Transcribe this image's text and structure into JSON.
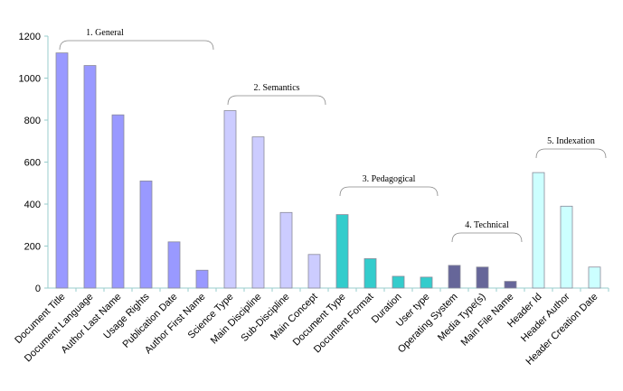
{
  "chart_data": {
    "type": "bar",
    "title": "",
    "xlabel": "",
    "ylabel": "",
    "ylim": [
      0,
      1200
    ],
    "yticks": [
      "0",
      "200",
      "400",
      "600",
      "800",
      "1000",
      "1200"
    ],
    "grid": false,
    "categories": [
      "Document Title",
      "Document Language",
      "Author Last Name",
      "Usage Rights",
      "Publication Date",
      "Author First Name",
      "Science  Type",
      "Main Discipline",
      "Sub-Discipline",
      "Main Concept",
      "Document Type",
      "Document Format",
      "Duration",
      "User type",
      "Operating System",
      "Media Type(s)",
      "Main File Name",
      "Header Id",
      "Header Author",
      "Header Creation Date"
    ],
    "values": [
      1120,
      1060,
      825,
      510,
      220,
      85,
      845,
      720,
      360,
      160,
      350,
      140,
      56,
      52,
      108,
      100,
      32,
      550,
      390,
      100
    ],
    "groups": [
      {
        "label": "1. General",
        "start": 0,
        "end": 5,
        "color": "#9999ff"
      },
      {
        "label": "2. Semantics",
        "start": 6,
        "end": 9,
        "color": "#ccccff"
      },
      {
        "label": "3. Pedagogical",
        "start": 10,
        "end": 13,
        "color": "#33cccc"
      },
      {
        "label": "4. Technical",
        "start": 14,
        "end": 16,
        "color": "#666699"
      },
      {
        "label": "5. Indexation",
        "start": 17,
        "end": 19,
        "color": "#ccffff"
      }
    ]
  }
}
